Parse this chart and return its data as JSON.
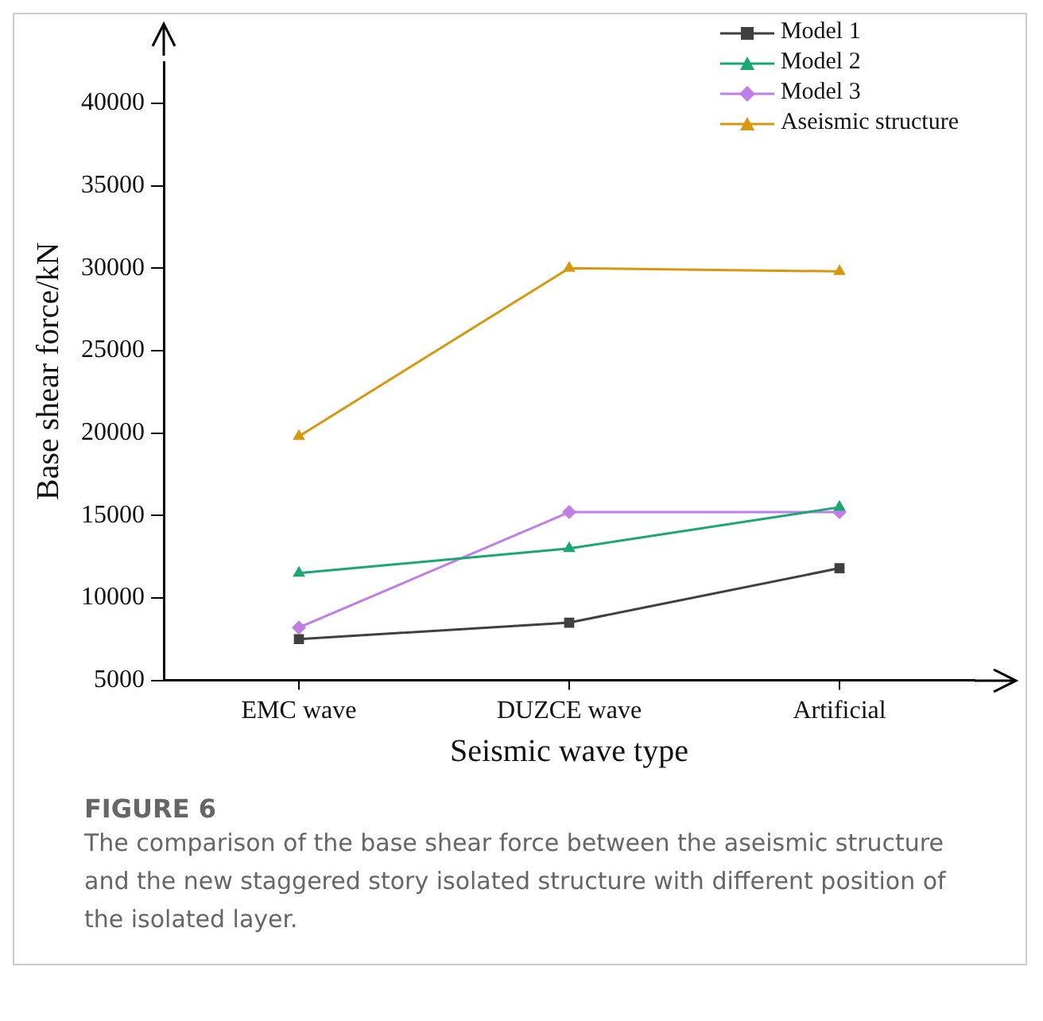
{
  "chart_data": {
    "type": "line",
    "title": "FIGURE 6",
    "annotations": [
      "The comparison of the base shear force between the aseismic structure and the new staggered story isolated structure with different position of the isolated layer."
    ],
    "xlabel": "Seismic wave type",
    "ylabel": "Base shear force/kN",
    "categories": [
      "EMC wave",
      "DUZCE wave",
      "Artificial"
    ],
    "series": [
      {
        "name": "Model 1",
        "color": "#404040",
        "marker": "square",
        "values": [
          7500,
          8500,
          11800
        ]
      },
      {
        "name": "Model 2",
        "color": "#1aa772",
        "marker": "triangle",
        "values": [
          11500,
          13000,
          15500
        ]
      },
      {
        "name": "Model 3",
        "color": "#c07ee6",
        "marker": "diamond",
        "values": [
          8200,
          15200,
          15200
        ]
      },
      {
        "name": "Aseismic structure",
        "color": "#d9960f",
        "marker": "triangle",
        "values": [
          19800,
          30000,
          29800
        ]
      }
    ],
    "ylim": [
      5000,
      42500
    ],
    "yticks": [
      5000,
      10000,
      15000,
      20000,
      25000,
      30000,
      35000,
      40000
    ],
    "grid": false,
    "legend": "top right",
    "line_style": "solid"
  }
}
